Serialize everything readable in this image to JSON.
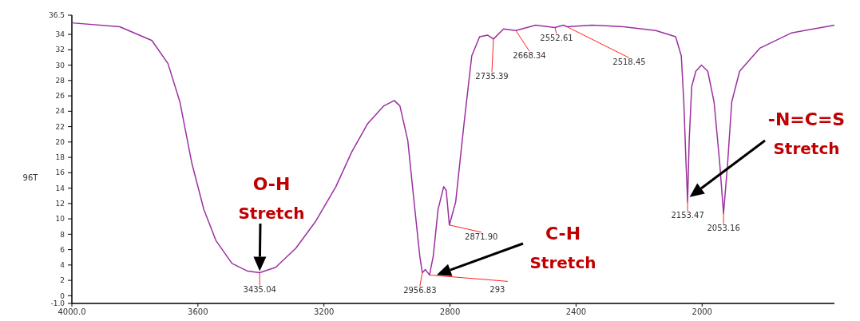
{
  "chart_data": {
    "type": "line",
    "ylabel": "96T",
    "xlim": [
      4000,
      1580
    ],
    "xticks": [
      {
        "value": 4000,
        "label": "4000.0"
      },
      3600,
      3200,
      2800,
      2400,
      2000
    ],
    "ylim": [
      -1,
      36.5
    ],
    "yticks": [
      {
        "value": -1,
        "label": "-1.0"
      },
      0,
      2,
      4,
      6,
      8,
      10,
      12,
      14,
      16,
      18,
      20,
      22,
      24,
      26,
      28,
      30,
      32,
      34,
      {
        "value": 36.5,
        "label": "36.5"
      }
    ],
    "grid": false,
    "marker": "none",
    "line_style": "solid",
    "series": [
      {
        "color": "#9b30a0",
        "x": [
          4000,
          3848,
          3746,
          3695,
          3657,
          3619,
          3581,
          3543,
          3492,
          3442,
          3404,
          3353,
          3289,
          3226,
          3162,
          3112,
          3061,
          3010,
          2977,
          2959,
          2934,
          2914,
          2896,
          2888,
          2878,
          2865,
          2853,
          2838,
          2820,
          2812,
          2802,
          2782,
          2756,
          2731,
          2706,
          2680,
          2662,
          2630,
          2591,
          2528,
          2467,
          2440,
          2429,
          2350,
          2249,
          2147,
          2084,
          2066,
          2058,
          2051,
          2046,
          2041,
          2033,
          2020,
          2002,
          1982,
          1962,
          1944,
          1932,
          1919,
          1906,
          1881,
          1817,
          1716,
          1580
        ],
        "values": [
          35.5,
          35.0,
          33.2,
          30.2,
          25.2,
          17.2,
          11.2,
          7.2,
          4.2,
          3.2,
          3.0,
          3.7,
          6.2,
          9.7,
          14.2,
          18.7,
          22.4,
          24.7,
          25.4,
          24.7,
          20.2,
          12.2,
          5.2,
          3.0,
          3.4,
          2.7,
          5.2,
          11.2,
          14.2,
          13.7,
          9.2,
          12.2,
          22.2,
          31.2,
          33.7,
          33.9,
          33.4,
          34.7,
          34.5,
          35.2,
          34.9,
          35.2,
          35.0,
          35.2,
          35.0,
          34.5,
          33.7,
          31.2,
          25.2,
          17.2,
          12.2,
          20.2,
          27.2,
          29.2,
          30.0,
          29.2,
          25.2,
          17.2,
          10.7,
          17.2,
          25.2,
          29.2,
          32.2,
          34.2,
          35.2
        ]
      }
    ],
    "annotations": [
      {
        "text": "3435.04",
        "x": 3404,
        "y": 3.0
      },
      {
        "text": "2956.83",
        "x": 2888,
        "y": 3.0
      },
      {
        "text": "293",
        "x": 2865,
        "y": 2.7
      },
      {
        "text": "2871.90",
        "x": 2802,
        "y": 9.2
      },
      {
        "text": "2735.39",
        "x": 2662,
        "y": 33.4
      },
      {
        "text": "2668.34",
        "x": 2591,
        "y": 34.5
      },
      {
        "text": "2552.61",
        "x": 2467,
        "y": 34.9
      },
      {
        "text": "2518.45",
        "x": 2429,
        "y": 35.0
      },
      {
        "text": "2153.47",
        "x": 2046,
        "y": 12.2
      },
      {
        "text": "2053.16",
        "x": 1932,
        "y": 10.7
      },
      {
        "text": "O-H Stretch",
        "x": 3404,
        "y": 3.0
      },
      "C-H Stretch",
      "-N=C=S Stretch"
    ]
  }
}
